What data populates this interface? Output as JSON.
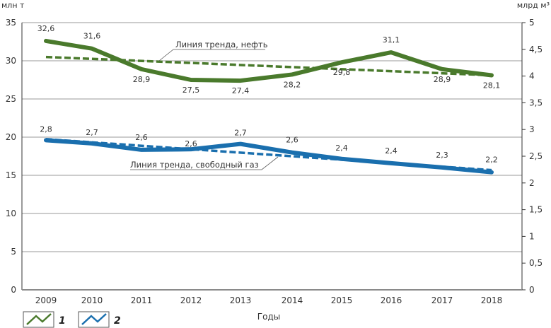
{
  "chart_data": {
    "type": "line",
    "title": "",
    "xlabel": "Годы",
    "ylabel_left": "млн т",
    "ylabel_right": "млрд м³",
    "x": [
      "2009",
      "2010",
      "2011",
      "2012",
      "2013",
      "2014",
      "2015",
      "2016",
      "2017",
      "2018"
    ],
    "ylim_left": [
      0,
      35
    ],
    "yticks_left": [
      "0",
      "5",
      "10",
      "15",
      "20",
      "25",
      "30",
      "35"
    ],
    "ylim_right": [
      0,
      5
    ],
    "yticks_right": [
      "0",
      "0,5",
      "1",
      "1,5",
      "2",
      "2,5",
      "3",
      "3,5",
      "4",
      "4,5",
      "5"
    ],
    "grid": true,
    "series": [
      {
        "name": "1",
        "axis": "left",
        "color": "#4a7a2c",
        "values": [
          32.6,
          31.6,
          28.9,
          27.5,
          27.4,
          28.2,
          29.8,
          31.1,
          28.9,
          28.1
        ],
        "labels": [
          "32,6",
          "31,6",
          "28,9",
          "27,5",
          "27,4",
          "28,2",
          "29,8",
          "31,1",
          "28,9",
          "28,1"
        ],
        "trend": {
          "name": "Линия тренда, нефть",
          "start": 30.5,
          "end": 28.1
        }
      },
      {
        "name": "2",
        "axis": "right",
        "color": "#1a6fae",
        "values": [
          2.8,
          2.74,
          2.62,
          2.63,
          2.73,
          2.57,
          2.45,
          2.37,
          2.29,
          2.2
        ],
        "labels": [
          "2,8",
          "2,7",
          "2,6",
          "2,6",
          "2,7",
          "2,6",
          "2,4",
          "2,4",
          "2,3",
          "2,2"
        ],
        "trend": {
          "name": "Линия тренда, свободный газ",
          "start": 2.82,
          "end": 2.24
        }
      }
    ],
    "legend": [
      "1",
      "2"
    ],
    "legend_position": "bottom-left"
  }
}
